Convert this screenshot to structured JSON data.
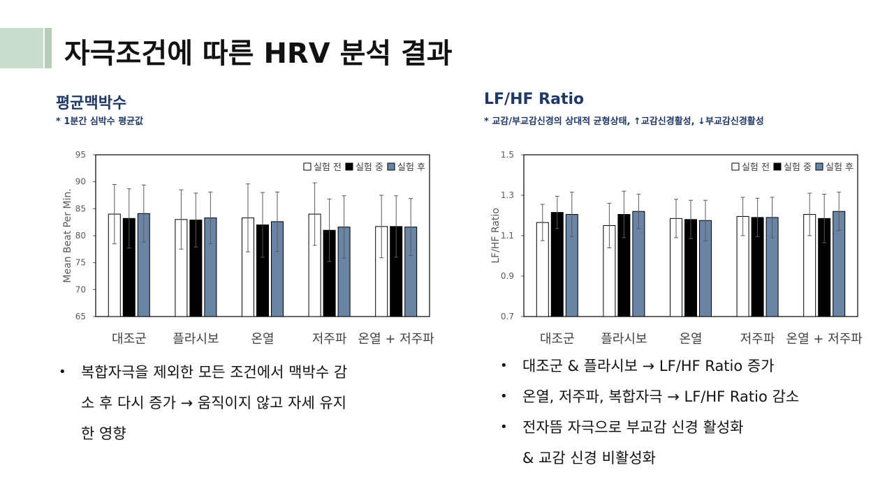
{
  "slide": {
    "title": "자극조건에 따른 HRV 분석 결과",
    "accent_colors": [
      "#c9dccb",
      "#b5ceb9"
    ]
  },
  "left": {
    "heading": "평균맥박수",
    "note": "* 1분간 심박수 평균값",
    "heading_color": "#1f3864",
    "bullets": [
      "복합자극을 제외한 모든 조건에서 맥박수 감",
      "소 후 다시 증가 → 움직이지 않고 자세 유지",
      "한 영향"
    ]
  },
  "right": {
    "heading": "LF/HF Ratio",
    "note": "* 교감/부교감신경의 상대적 균형상태, ↑교감신경활성, ↓부교감신경활성",
    "heading_color": "#1f3864",
    "bullets": [
      "대조군 & 플라시보 → LF/HF Ratio 증가",
      "온열, 저주파, 복합자극 → LF/HF Ratio 감소",
      "전자뜸 자극으로 부교감 신경 활성화",
      "& 교감 신경 비활성화"
    ]
  },
  "chart_data": [
    {
      "type": "bar",
      "ylabel": "Mean Beat Per Min.",
      "xlabel": "",
      "ylim": [
        65,
        95
      ],
      "yticks": [
        65,
        70,
        75,
        80,
        85,
        90,
        95
      ],
      "ytick_labels": [
        "65",
        "70",
        "75",
        "80",
        "85",
        "90",
        "95"
      ],
      "categories": [
        "대조군",
        "플라시보",
        "온열",
        "저주파",
        "온열 + 저주파"
      ],
      "legend_position": "top-right",
      "grid": false,
      "series": [
        {
          "name": "실험 전",
          "color": "#ffffff",
          "values": [
            84.0,
            83.0,
            83.3,
            84.0,
            81.7
          ],
          "errors": [
            5.5,
            5.5,
            6.3,
            5.8,
            5.8
          ]
        },
        {
          "name": "실험 중",
          "color": "#000000",
          "values": [
            83.2,
            82.9,
            82.0,
            81.0,
            81.7
          ],
          "errors": [
            5.5,
            5.0,
            6.0,
            5.8,
            5.7
          ]
        },
        {
          "name": "실험 후",
          "color": "#6a84a6",
          "values": [
            84.1,
            83.3,
            82.6,
            81.6,
            81.6
          ],
          "errors": [
            5.3,
            4.8,
            5.5,
            5.8,
            5.3
          ]
        }
      ]
    },
    {
      "type": "bar",
      "ylabel": "LF/HF Ratio",
      "xlabel": "",
      "ylim": [
        0.7,
        1.5
      ],
      "yticks": [
        0.7,
        0.9,
        1.1,
        1.3,
        1.5
      ],
      "ytick_labels": [
        "0.7",
        "0.9",
        "1.1",
        "1.3",
        "1.5"
      ],
      "categories": [
        "대조군",
        "플라시보",
        "온열",
        "저주파",
        "온열 + 저주파"
      ],
      "legend_position": "top-right",
      "grid": false,
      "series": [
        {
          "name": "실험 전",
          "color": "#ffffff",
          "values": [
            1.165,
            1.15,
            1.185,
            1.195,
            1.205
          ],
          "errors": [
            0.09,
            0.11,
            0.095,
            0.095,
            0.105
          ]
        },
        {
          "name": "실험 중",
          "color": "#000000",
          "values": [
            1.215,
            1.205,
            1.18,
            1.19,
            1.185
          ],
          "errors": [
            0.08,
            0.115,
            0.095,
            0.095,
            0.12
          ]
        },
        {
          "name": "실험 후",
          "color": "#6a84a6",
          "values": [
            1.205,
            1.22,
            1.175,
            1.19,
            1.22
          ],
          "errors": [
            0.11,
            0.085,
            0.1,
            0.1,
            0.095
          ]
        }
      ]
    }
  ]
}
